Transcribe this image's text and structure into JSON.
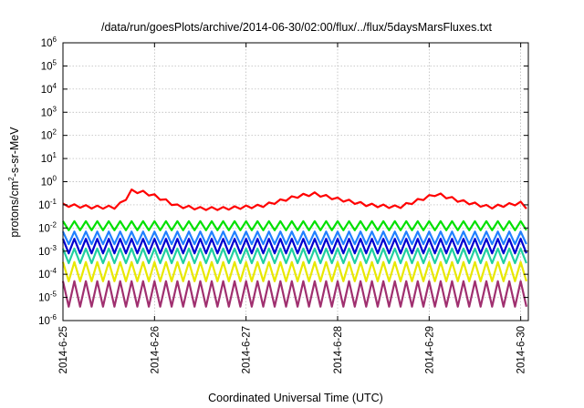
{
  "chart_data": {
    "type": "line",
    "title": "/data/run/goesPlots/archive/2014-06-30/02:00/flux/../flux/5daysMarsFluxes.txt",
    "xlabel": "Coordinated Universal Time (UTC)",
    "ylabel_parts": [
      "protons/cm",
      "2",
      "-s-sr-MeV"
    ],
    "yscale": "log",
    "ylim": [
      1e-06,
      1000000.0
    ],
    "y_ticks": [
      {
        "base": "10",
        "exp": "-6"
      },
      {
        "base": "10",
        "exp": "-5"
      },
      {
        "base": "10",
        "exp": "-4"
      },
      {
        "base": "10",
        "exp": "-3"
      },
      {
        "base": "10",
        "exp": "-2"
      },
      {
        "base": "10",
        "exp": "-1"
      },
      {
        "base": "10",
        "exp": "0"
      },
      {
        "base": "10",
        "exp": "1"
      },
      {
        "base": "10",
        "exp": "2"
      },
      {
        "base": "10",
        "exp": "3"
      },
      {
        "base": "10",
        "exp": "4"
      },
      {
        "base": "10",
        "exp": "5"
      },
      {
        "base": "10",
        "exp": "6"
      }
    ],
    "x_ticks": [
      "2014-6-25",
      "2014-6-26",
      "2014-6-27",
      "2014-6-28",
      "2014-6-29",
      "2014-6-30"
    ],
    "x_range": [
      "2014-06-25T00:00",
      "2014-06-30T02:00"
    ],
    "grid": true,
    "series": [
      {
        "color": "#ff0000",
        "base": 0.07,
        "amp": 0.08,
        "period_hours": 3.0,
        "points": [
          [
            "2014-06-25T00:00",
            0.1
          ],
          [
            "2014-06-25T08:00",
            0.08
          ],
          [
            "2014-06-25T14:00",
            0.08
          ],
          [
            "2014-06-25T16:00",
            0.15
          ],
          [
            "2014-06-25T18:00",
            0.4
          ],
          [
            "2014-06-25T21:00",
            0.35
          ],
          [
            "2014-06-26T00:00",
            0.25
          ],
          [
            "2014-06-26T06:00",
            0.09
          ],
          [
            "2014-06-26T12:00",
            0.07
          ],
          [
            "2014-06-26T18:00",
            0.07
          ],
          [
            "2014-06-27T04:00",
            0.09
          ],
          [
            "2014-06-27T14:00",
            0.25
          ],
          [
            "2014-06-27T18:00",
            0.3
          ],
          [
            "2014-06-28T00:00",
            0.18
          ],
          [
            "2014-06-28T08:00",
            0.1
          ],
          [
            "2014-06-28T16:00",
            0.08
          ],
          [
            "2014-06-29T02:00",
            0.3
          ],
          [
            "2014-06-29T08:00",
            0.15
          ],
          [
            "2014-06-29T16:00",
            0.08
          ],
          [
            "2014-06-30T00:00",
            0.12
          ],
          [
            "2014-06-30T02:00",
            0.07
          ]
        ]
      },
      {
        "color": "#00e000",
        "base": 0.008,
        "amp": 0.012,
        "period_hours": 3.0,
        "points": [
          [
            "2014-06-25T00:00",
            0.01
          ],
          [
            "2014-06-30T02:00",
            0.01
          ]
        ]
      },
      {
        "color": "#2080ff",
        "base": 0.002,
        "amp": 0.005,
        "period_hours": 3.0,
        "points": [
          [
            "2014-06-25T00:00",
            0.003
          ],
          [
            "2014-06-30T02:00",
            0.003
          ]
        ]
      },
      {
        "color": "#0000d0",
        "base": 0.0008,
        "amp": 0.003,
        "period_hours": 3.0,
        "points": [
          [
            "2014-06-25T00:00",
            0.001
          ],
          [
            "2014-06-30T02:00",
            0.001
          ]
        ]
      },
      {
        "color": "#20d0a0",
        "base": 0.0003,
        "amp": 0.001,
        "period_hours": 3.0,
        "points": [
          [
            "2014-06-25T00:00",
            0.0005
          ],
          [
            "2014-06-30T02:00",
            0.0005
          ]
        ]
      },
      {
        "color": "#e8e800",
        "base": 5e-05,
        "amp": 0.0003,
        "period_hours": 3.0,
        "points": [
          [
            "2014-06-25T00:00",
            0.0001
          ],
          [
            "2014-06-30T02:00",
            0.0001
          ]
        ]
      },
      {
        "color": "#a03070",
        "base": 4e-06,
        "amp": 5e-05,
        "period_hours": 3.0,
        "points": [
          [
            "2014-06-25T00:00",
            1e-05
          ],
          [
            "2014-06-30T02:00",
            1e-05
          ]
        ]
      }
    ]
  }
}
